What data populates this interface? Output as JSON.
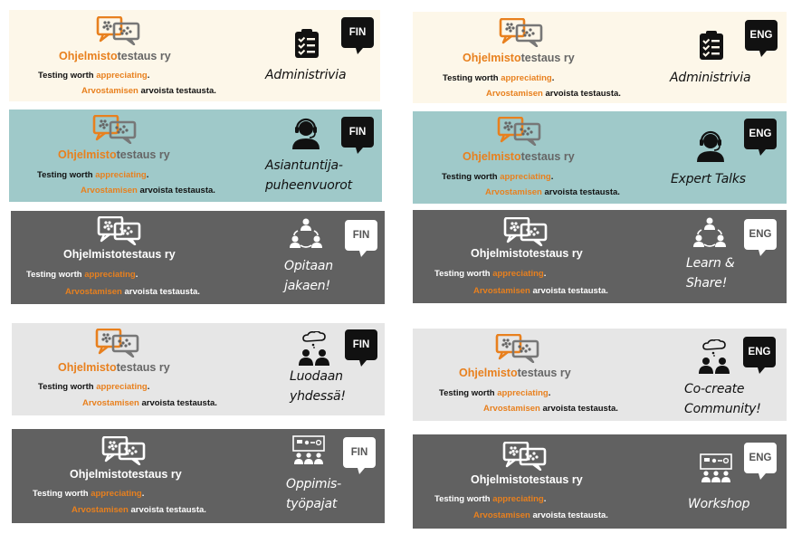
{
  "brand": {
    "part1": "Ohjelmisto",
    "part2": "testaus ry"
  },
  "tagline": {
    "line1_a": "Testing worth ",
    "line1_accent": "appreciating",
    "line1_b": ".",
    "line2_accent": "Arvostamisen",
    "line2_b": " arvoista testausta."
  },
  "colors": {
    "orange": "#e8801e",
    "cream": "#fdf7e9",
    "teal": "#9fc9c9",
    "dark_gray": "#616161",
    "light_gray": "#e6e6e6"
  },
  "banners": [
    {
      "lang": "FIN",
      "category": "Administrivia",
      "icon": "clipboard-checklist-icon"
    },
    {
      "lang": "ENG",
      "category": "Administrivia",
      "icon": "clipboard-checklist-icon"
    },
    {
      "lang": "FIN",
      "category_line1": "Asiantuntija-",
      "category_line2": "puheenvuorot",
      "icon": "speaker-headset-icon"
    },
    {
      "lang": "ENG",
      "category": "Expert Talks",
      "icon": "speaker-headset-icon"
    },
    {
      "lang": "FIN",
      "category_line1": "Opitaan",
      "category_line2": "jakaen!",
      "icon": "people-sharing-icon"
    },
    {
      "lang": "ENG",
      "category_line1": "Learn &",
      "category_line2": "Share!",
      "icon": "people-sharing-icon"
    },
    {
      "lang": "FIN",
      "category_line1": "Luodaan",
      "category_line2": "yhdessä!",
      "icon": "thought-cloud-people-icon"
    },
    {
      "lang": "ENG",
      "category_line1": "Co-create",
      "category_line2": "Community!",
      "icon": "thought-cloud-people-icon"
    },
    {
      "lang": "FIN",
      "category_line1": "Oppimis-",
      "category_line2": "työpajat",
      "icon": "workshop-board-icon"
    },
    {
      "lang": "ENG",
      "category": "Workshop",
      "icon": "workshop-board-icon"
    }
  ]
}
